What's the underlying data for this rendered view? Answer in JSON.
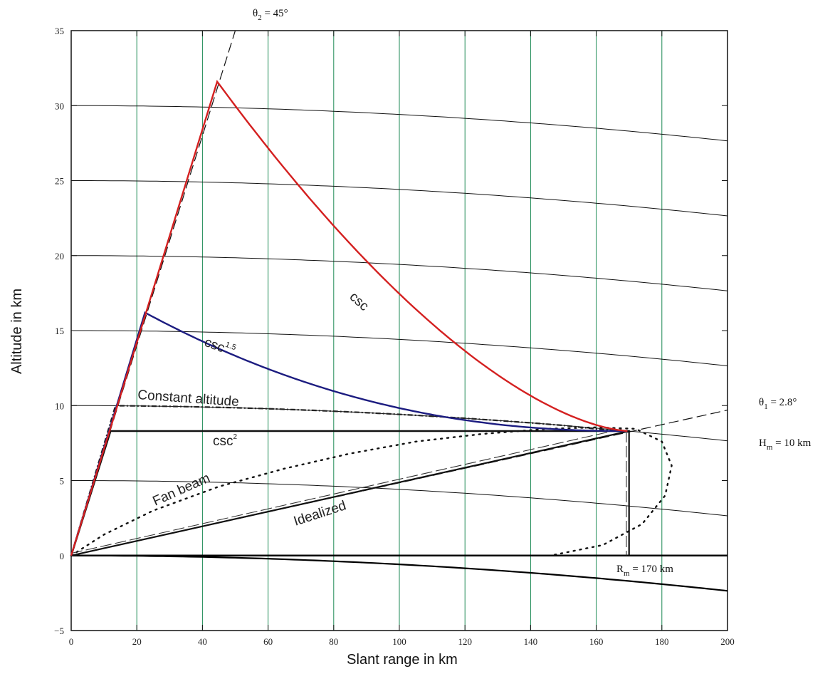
{
  "chart_data": {
    "type": "line",
    "xlabel": "Slant range in km",
    "ylabel": "Altitude in km",
    "xlim": [
      0,
      200
    ],
    "ylim": [
      -5,
      35
    ],
    "xticks": [
      0,
      20,
      40,
      60,
      80,
      100,
      120,
      140,
      160,
      180,
      200
    ],
    "yticks": [
      -5,
      0,
      5,
      10,
      15,
      20,
      25,
      30,
      35
    ],
    "vertical_grid": true,
    "vertical_grid_color": "#1e8a55",
    "altitude_contours": [
      0,
      5,
      10,
      15,
      20,
      25,
      30
    ],
    "earth_radius_effect_km": 8500,
    "annotations": {
      "theta2": {
        "base": "θ",
        "sub": "2",
        "rest": " = 45°"
      },
      "theta1": {
        "base": "θ",
        "sub": "1",
        "rest": " = 2.8°"
      },
      "hm": {
        "base": "H",
        "sub": "m",
        "rest": " = 10 km"
      },
      "rm": {
        "base": "R",
        "sub": "m",
        "rest": " = 170 km"
      }
    },
    "curve_labels": {
      "csc": "csc",
      "csc15_base": "csc",
      "csc15_sup": "1.5",
      "constant_altitude": "Constant altitude",
      "csc2_base": "csc",
      "csc2_sup": "2",
      "fan_beam": "Fan beam",
      "idealized": "Idealized"
    },
    "series": [
      {
        "name": "csc",
        "color": "#d42020",
        "peak": [
          44.5,
          31.6
        ],
        "end": [
          170,
          8.3
        ]
      },
      {
        "name": "csc 1.5",
        "color": "#1c1c80",
        "peak": [
          22.5,
          16.2
        ],
        "end": [
          170,
          8.3
        ]
      },
      {
        "name": "Constant altitude",
        "color": "#222222",
        "points": [
          [
            13.5,
            10.0
          ],
          [
            60,
            9.9
          ],
          [
            100,
            9.4
          ],
          [
            140,
            8.9
          ],
          [
            170,
            8.3
          ]
        ]
      },
      {
        "name": "csc 2",
        "color": "#111111",
        "points": [
          [
            0,
            0
          ],
          [
            12,
            8.3
          ],
          [
            170,
            8.3
          ]
        ]
      },
      {
        "name": "Idealized",
        "color": "#111111",
        "points": [
          [
            0,
            0
          ],
          [
            170,
            8.3
          ],
          [
            170,
            0
          ]
        ]
      },
      {
        "name": "Fan beam",
        "color": "#111111",
        "extent_x": [
          0,
          182
        ],
        "extent_y": [
          0,
          8.6
        ]
      }
    ],
    "reference_lines": {
      "theta2_line_end": [
        50,
        35
      ],
      "theta1_line_end": [
        200,
        9.7
      ]
    }
  }
}
